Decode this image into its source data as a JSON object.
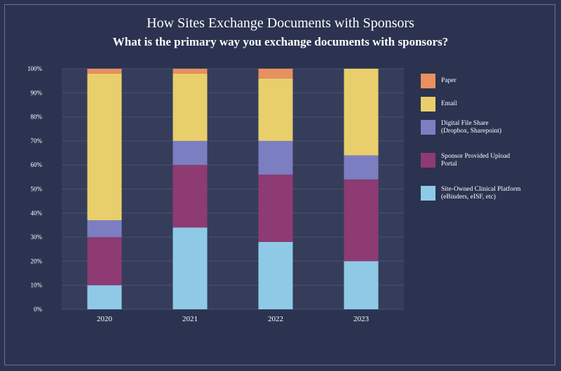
{
  "chart_data": {
    "type": "bar",
    "stacked": true,
    "title": "How Sites Exchange Documents with Sponsors",
    "subtitle": "What is the primary way you exchange documents with sponsors?",
    "categories": [
      "2020",
      "2021",
      "2022",
      "2023"
    ],
    "y_ticks": [
      "0%",
      "10%",
      "20%",
      "30%",
      "40%",
      "50%",
      "60%",
      "70%",
      "80%",
      "90%",
      "100%"
    ],
    "ylim": [
      0,
      100
    ],
    "grid": true,
    "legend_position": "right",
    "series": [
      {
        "name": "Site-Owned Clinical Platform\n(eBinders, eISF, etc)",
        "color": "#8ecae6",
        "values": [
          10,
          34,
          28,
          20
        ]
      },
      {
        "name": "Sponsor Provided Upload\nPortal",
        "color": "#8e3a73",
        "values": [
          20,
          26,
          28,
          34
        ]
      },
      {
        "name": "Digital File Share\n(Dropbox, Sharepoint)",
        "color": "#7b7fc1",
        "values": [
          7,
          10,
          14,
          10
        ]
      },
      {
        "name": "Email",
        "color": "#e8cf6b",
        "values": [
          61,
          28,
          26,
          36
        ]
      },
      {
        "name": "Paper",
        "color": "#e8905f",
        "values": [
          2,
          2,
          4,
          0
        ]
      }
    ],
    "legend_order": [
      4,
      3,
      2,
      1,
      0
    ]
  }
}
